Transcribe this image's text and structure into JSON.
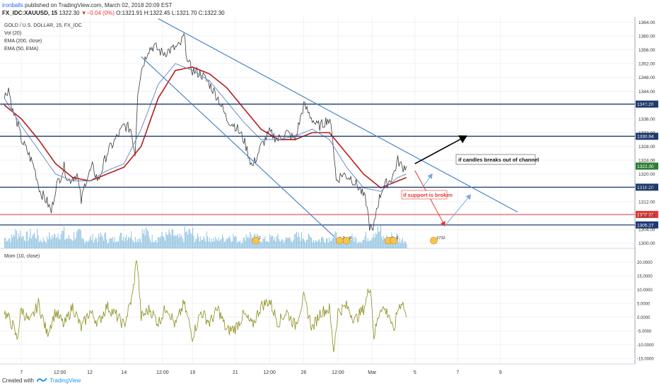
{
  "header": {
    "author": "ironballs",
    "published_text": "published on TradingView.com, March 02, 2018 20:09 EST",
    "symbol": "FX_IDC:XAUUSD, 15",
    "last": "1322.30",
    "change": "▼−0.04 (0%)",
    "ohlc": "O:1321.91 H:1322.45 L:1321.70 C:1322.30"
  },
  "legend": {
    "title": "GOLD / U.S. DOLLAR, 15, FX_IDC",
    "vol": "Vol (20)",
    "ema200": "EMA (200, close)",
    "ema50": "EMA (50, EMA)",
    "mom": "Mom (10, close)"
  },
  "footer": {
    "created_with": "Created with",
    "brand": "TradingView"
  },
  "colors": {
    "price": "#3a3a3a",
    "ema200": "#b71c1c",
    "ema50": "#6f8fc0",
    "trendline": "#4a86c8",
    "hline_blue": "#1f3b70",
    "hline_red": "#e53935",
    "volume": "#76b3d8",
    "momentum": "#8c8c1a",
    "price_label_green": "#2e7d32"
  },
  "annotations": {
    "breakout": "if candles breaks out of channel",
    "support": "if support is broken"
  },
  "events": [
    {
      "label": "2",
      "x": 29.4
    },
    {
      "label": "2",
      "x": 39.2
    },
    {
      "label": "8",
      "x": 40.0
    },
    {
      "label": "6",
      "x": 44.9
    },
    {
      "label": "2",
      "x": 45.5
    },
    {
      "label": "2732",
      "x": 50.2
    }
  ],
  "chart_data": [
    {
      "type": "line",
      "name_label": "GOLD / U.S. DOLLAR, 15, FX_IDC",
      "x_axis": {
        "range": [
          0,
          60
        ],
        "ticks": [
          {
            "x": 2,
            "label": "7"
          },
          {
            "x": 6.5,
            "label": "12:00"
          },
          {
            "x": 10,
            "label": "12"
          },
          {
            "x": 14,
            "label": "14"
          },
          {
            "x": 18.5,
            "label": "12:00"
          },
          {
            "x": 22,
            "label": "19"
          },
          {
            "x": 27,
            "label": "21"
          },
          {
            "x": 31,
            "label": "12:00"
          },
          {
            "x": 35,
            "label": "26"
          },
          {
            "x": 39,
            "label": "12:00"
          },
          {
            "x": 43,
            "label": "Mar"
          },
          {
            "x": 48,
            "label": "5"
          },
          {
            "x": 53,
            "label": "7"
          },
          {
            "x": 58,
            "label": "9"
          }
        ]
      },
      "y_axis": {
        "range": [
          1298.5,
          1365.5
        ],
        "ticks": [
          1300,
          1304,
          1308,
          1312,
          1316,
          1320,
          1324,
          1328,
          1332,
          1336,
          1340,
          1344,
          1348,
          1352,
          1356,
          1360,
          1364
        ]
      },
      "grid": true,
      "price_keypoints": [
        [
          0,
          1342
        ],
        [
          0.5,
          1345
        ],
        [
          1.0,
          1338
        ],
        [
          1.5,
          1335
        ],
        [
          2,
          1330
        ],
        [
          2.8,
          1326
        ],
        [
          3.5,
          1322
        ],
        [
          4.2,
          1315
        ],
        [
          5,
          1312
        ],
        [
          5.5,
          1309
        ],
        [
          6,
          1316
        ],
        [
          7,
          1322
        ],
        [
          7.5,
          1318
        ],
        [
          8.5,
          1320
        ],
        [
          9,
          1312
        ],
        [
          9.5,
          1318
        ],
        [
          10.3,
          1322
        ],
        [
          11,
          1318
        ],
        [
          12,
          1326
        ],
        [
          13,
          1330
        ],
        [
          14,
          1334
        ],
        [
          14.8,
          1333
        ],
        [
          15.3,
          1326
        ],
        [
          15.6,
          1344
        ],
        [
          16,
          1350
        ],
        [
          16.8,
          1356
        ],
        [
          17.5,
          1357
        ],
        [
          18.5,
          1355
        ],
        [
          19.5,
          1356
        ],
        [
          20.5,
          1357
        ],
        [
          21,
          1360
        ],
        [
          21.5,
          1352
        ],
        [
          22,
          1350
        ],
        [
          23,
          1349
        ],
        [
          24,
          1346
        ],
        [
          25,
          1342
        ],
        [
          26,
          1336
        ],
        [
          27,
          1334
        ],
        [
          28,
          1330
        ],
        [
          29,
          1322
        ],
        [
          30,
          1328
        ],
        [
          31,
          1332
        ],
        [
          32,
          1330
        ],
        [
          33,
          1332
        ],
        [
          34,
          1330
        ],
        [
          35,
          1340
        ],
        [
          36,
          1336
        ],
        [
          36.5,
          1334
        ],
        [
          37,
          1334
        ],
        [
          37.8,
          1336
        ],
        [
          38.3,
          1333
        ],
        [
          38.8,
          1318
        ],
        [
          39.5,
          1320
        ],
        [
          40.5,
          1319
        ],
        [
          41.5,
          1316
        ],
        [
          42.3,
          1312
        ],
        [
          42.7,
          1305
        ],
        [
          43.1,
          1303
        ],
        [
          43.5,
          1310
        ],
        [
          44.2,
          1316
        ],
        [
          45,
          1318
        ],
        [
          45.5,
          1320
        ],
        [
          46,
          1324
        ],
        [
          46.5,
          1322
        ],
        [
          47,
          1322.3
        ]
      ],
      "ema200_keypoints": [
        [
          0,
          1340
        ],
        [
          2,
          1336
        ],
        [
          4,
          1330
        ],
        [
          6,
          1323
        ],
        [
          8,
          1319
        ],
        [
          10,
          1318
        ],
        [
          12,
          1320
        ],
        [
          14,
          1322
        ],
        [
          16,
          1328
        ],
        [
          18,
          1342
        ],
        [
          20,
          1350
        ],
        [
          22,
          1351
        ],
        [
          24,
          1349
        ],
        [
          26,
          1345
        ],
        [
          28,
          1339
        ],
        [
          30,
          1333
        ],
        [
          32,
          1330
        ],
        [
          34,
          1330
        ],
        [
          36,
          1332
        ],
        [
          38,
          1332
        ],
        [
          40,
          1326
        ],
        [
          42,
          1320
        ],
        [
          44,
          1316
        ],
        [
          46,
          1318
        ],
        [
          47,
          1319
        ]
      ],
      "ema50_keypoints": [
        [
          0,
          1342
        ],
        [
          2,
          1334
        ],
        [
          4,
          1327
        ],
        [
          6,
          1320
        ],
        [
          8,
          1318
        ],
        [
          10,
          1318
        ],
        [
          12,
          1321
        ],
        [
          14,
          1323
        ],
        [
          16,
          1333
        ],
        [
          18,
          1346
        ],
        [
          20,
          1352
        ],
        [
          22,
          1350
        ],
        [
          24,
          1347
        ],
        [
          26,
          1341
        ],
        [
          28,
          1335
        ],
        [
          30,
          1330
        ],
        [
          32,
          1330
        ],
        [
          34,
          1331
        ],
        [
          36,
          1333
        ],
        [
          38,
          1330
        ],
        [
          40,
          1322
        ],
        [
          42,
          1316
        ],
        [
          44,
          1315
        ],
        [
          46,
          1319
        ],
        [
          47,
          1320
        ]
      ],
      "trendlines": [
        {
          "from": [
            18,
            1365
          ],
          "to": [
            60,
            1309
          ]
        },
        {
          "from": [
            16,
            1354
          ],
          "to": [
            38.5,
            1302
          ]
        }
      ],
      "horizontal_levels": [
        {
          "value": 1340.26,
          "label": "1340.26",
          "color": "blue"
        },
        {
          "value": 1330.94,
          "label": "1330.94",
          "color": "blue"
        },
        {
          "value": 1316.2,
          "label": "1316.20",
          "color": "blue"
        },
        {
          "value": 1308.31,
          "label": "1308.31",
          "color": "red"
        },
        {
          "value": 1305.27,
          "label": "1305.27",
          "color": "blue"
        }
      ],
      "current_price_label": "1322.30",
      "projection_arrows": [
        {
          "color": "black",
          "points": [
            [
              48,
              1323
            ],
            [
              54,
              1331
            ]
          ]
        },
        {
          "color": "red",
          "points": [
            [
              48,
              1321
            ],
            [
              49,
              1316.5
            ],
            [
              51.5,
              1305
            ]
          ]
        },
        {
          "color": "lightblue",
          "points": [
            [
              49,
              1316.5
            ],
            [
              50,
              1320
            ]
          ]
        },
        {
          "color": "lightblue",
          "points": [
            [
              51.5,
              1305
            ],
            [
              54.5,
              1314
            ]
          ]
        }
      ],
      "volume_profile": [
        [
          0,
          0.6
        ],
        [
          1,
          0.9
        ],
        [
          2,
          0.7
        ],
        [
          3,
          0.8
        ],
        [
          4,
          0.5
        ],
        [
          5,
          0.7
        ],
        [
          6,
          0.9
        ],
        [
          7,
          0.6
        ],
        [
          8,
          0.8
        ],
        [
          9,
          0.5
        ],
        [
          10,
          0.6
        ],
        [
          11,
          0.7
        ],
        [
          12,
          0.5
        ],
        [
          13,
          0.7
        ],
        [
          14,
          0.8
        ],
        [
          15,
          0.6
        ],
        [
          16,
          0.9
        ],
        [
          17,
          0.6
        ],
        [
          18,
          0.7
        ],
        [
          19,
          0.8
        ],
        [
          20,
          0.6
        ],
        [
          21,
          0.9
        ],
        [
          22,
          0.6
        ],
        [
          23,
          0.7
        ],
        [
          24,
          0.5
        ],
        [
          25,
          0.6
        ],
        [
          26,
          0.7
        ],
        [
          27,
          0.5
        ],
        [
          28,
          0.8
        ],
        [
          29,
          0.6
        ],
        [
          30,
          0.5
        ],
        [
          31,
          0.6
        ],
        [
          32,
          0.5
        ],
        [
          33,
          0.6
        ],
        [
          34,
          0.7
        ],
        [
          35,
          0.6
        ],
        [
          36,
          0.5
        ],
        [
          37,
          0.6
        ],
        [
          38,
          0.7
        ],
        [
          39,
          0.5
        ],
        [
          40,
          0.6
        ],
        [
          41,
          0.5
        ],
        [
          42,
          0.7
        ],
        [
          43,
          1.0
        ],
        [
          44,
          0.6
        ],
        [
          45,
          0.7
        ],
        [
          46,
          0.5
        ],
        [
          47,
          0.6
        ]
      ]
    },
    {
      "type": "line",
      "name_label": "Mom (10, close)",
      "x_axis": {
        "range": [
          0,
          60
        ]
      },
      "y_axis": {
        "range": [
          -17,
          24
        ],
        "ticks": [
          -15,
          -10,
          -5,
          0,
          5,
          10,
          15,
          20
        ]
      },
      "y_tick_labels": [
        "-15.0000",
        "-10.0000",
        "-5.0000",
        "0.0000",
        "5.0000",
        "10.0000",
        "15.0000",
        "20.0000"
      ],
      "grid": true,
      "momentum_keypoints": [
        [
          0,
          2
        ],
        [
          1,
          -3
        ],
        [
          1.5,
          -8
        ],
        [
          2,
          3
        ],
        [
          3,
          -2
        ],
        [
          4,
          5
        ],
        [
          5,
          -6
        ],
        [
          6,
          2
        ],
        [
          7,
          -3
        ],
        [
          8,
          4
        ],
        [
          9,
          -4
        ],
        [
          10,
          2
        ],
        [
          11,
          -2
        ],
        [
          12,
          4
        ],
        [
          13,
          1
        ],
        [
          14,
          -3
        ],
        [
          15,
          8
        ],
        [
          15.5,
          22
        ],
        [
          16,
          0
        ],
        [
          17,
          3
        ],
        [
          18,
          -2
        ],
        [
          19,
          4
        ],
        [
          20,
          -3
        ],
        [
          21,
          5
        ],
        [
          22,
          -7
        ],
        [
          23,
          2
        ],
        [
          24,
          -2
        ],
        [
          25,
          3
        ],
        [
          26,
          -5
        ],
        [
          27,
          -4
        ],
        [
          28,
          1
        ],
        [
          29,
          -3
        ],
        [
          30,
          4
        ],
        [
          31,
          6
        ],
        [
          32,
          -2
        ],
        [
          33,
          2
        ],
        [
          34,
          -3
        ],
        [
          35,
          7
        ],
        [
          36,
          -4
        ],
        [
          37,
          2
        ],
        [
          38,
          3
        ],
        [
          38.5,
          -12
        ],
        [
          39,
          2
        ],
        [
          40,
          4
        ],
        [
          41,
          -1
        ],
        [
          42,
          3
        ],
        [
          42.8,
          12
        ],
        [
          43.2,
          -7
        ],
        [
          44,
          4
        ],
        [
          45,
          1
        ],
        [
          45.5,
          -6
        ],
        [
          46,
          3
        ],
        [
          46.5,
          6
        ],
        [
          47,
          0
        ]
      ]
    }
  ]
}
